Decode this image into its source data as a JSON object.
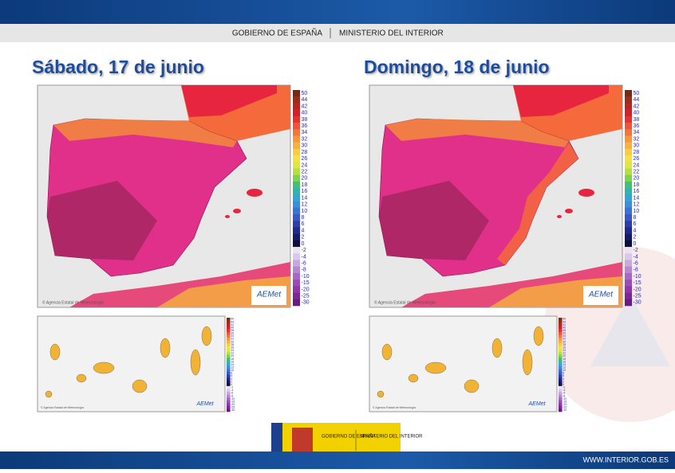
{
  "header": {
    "left": "GOBIERNO DE ESPAÑA",
    "right": "MINISTERIO DEL INTERIOR"
  },
  "panels": [
    {
      "title": "Sábado, 17 de junio"
    },
    {
      "title": "Domingo, 18 de junio"
    }
  ],
  "legend": [
    "50",
    "44",
    "42",
    "40",
    "38",
    "36",
    "34",
    "32",
    "30",
    "28",
    "26",
    "24",
    "22",
    "20",
    "18",
    "16",
    "14",
    "12",
    "10",
    "8",
    "6",
    "4",
    "2",
    "0",
    "-2",
    "-4",
    "-6",
    "-8",
    "-10",
    "-15",
    "-20",
    "-25",
    "-30"
  ],
  "credit": "© Agencia Estatal de Meteorología",
  "aemet_logo": "AEMet",
  "footer": {
    "logo_left": "GOBIERNO DE ESPAÑA",
    "logo_right": "MINISTERIO DEL INTERIOR",
    "url": "WWW.INTERIOR.GOB.ES"
  }
}
